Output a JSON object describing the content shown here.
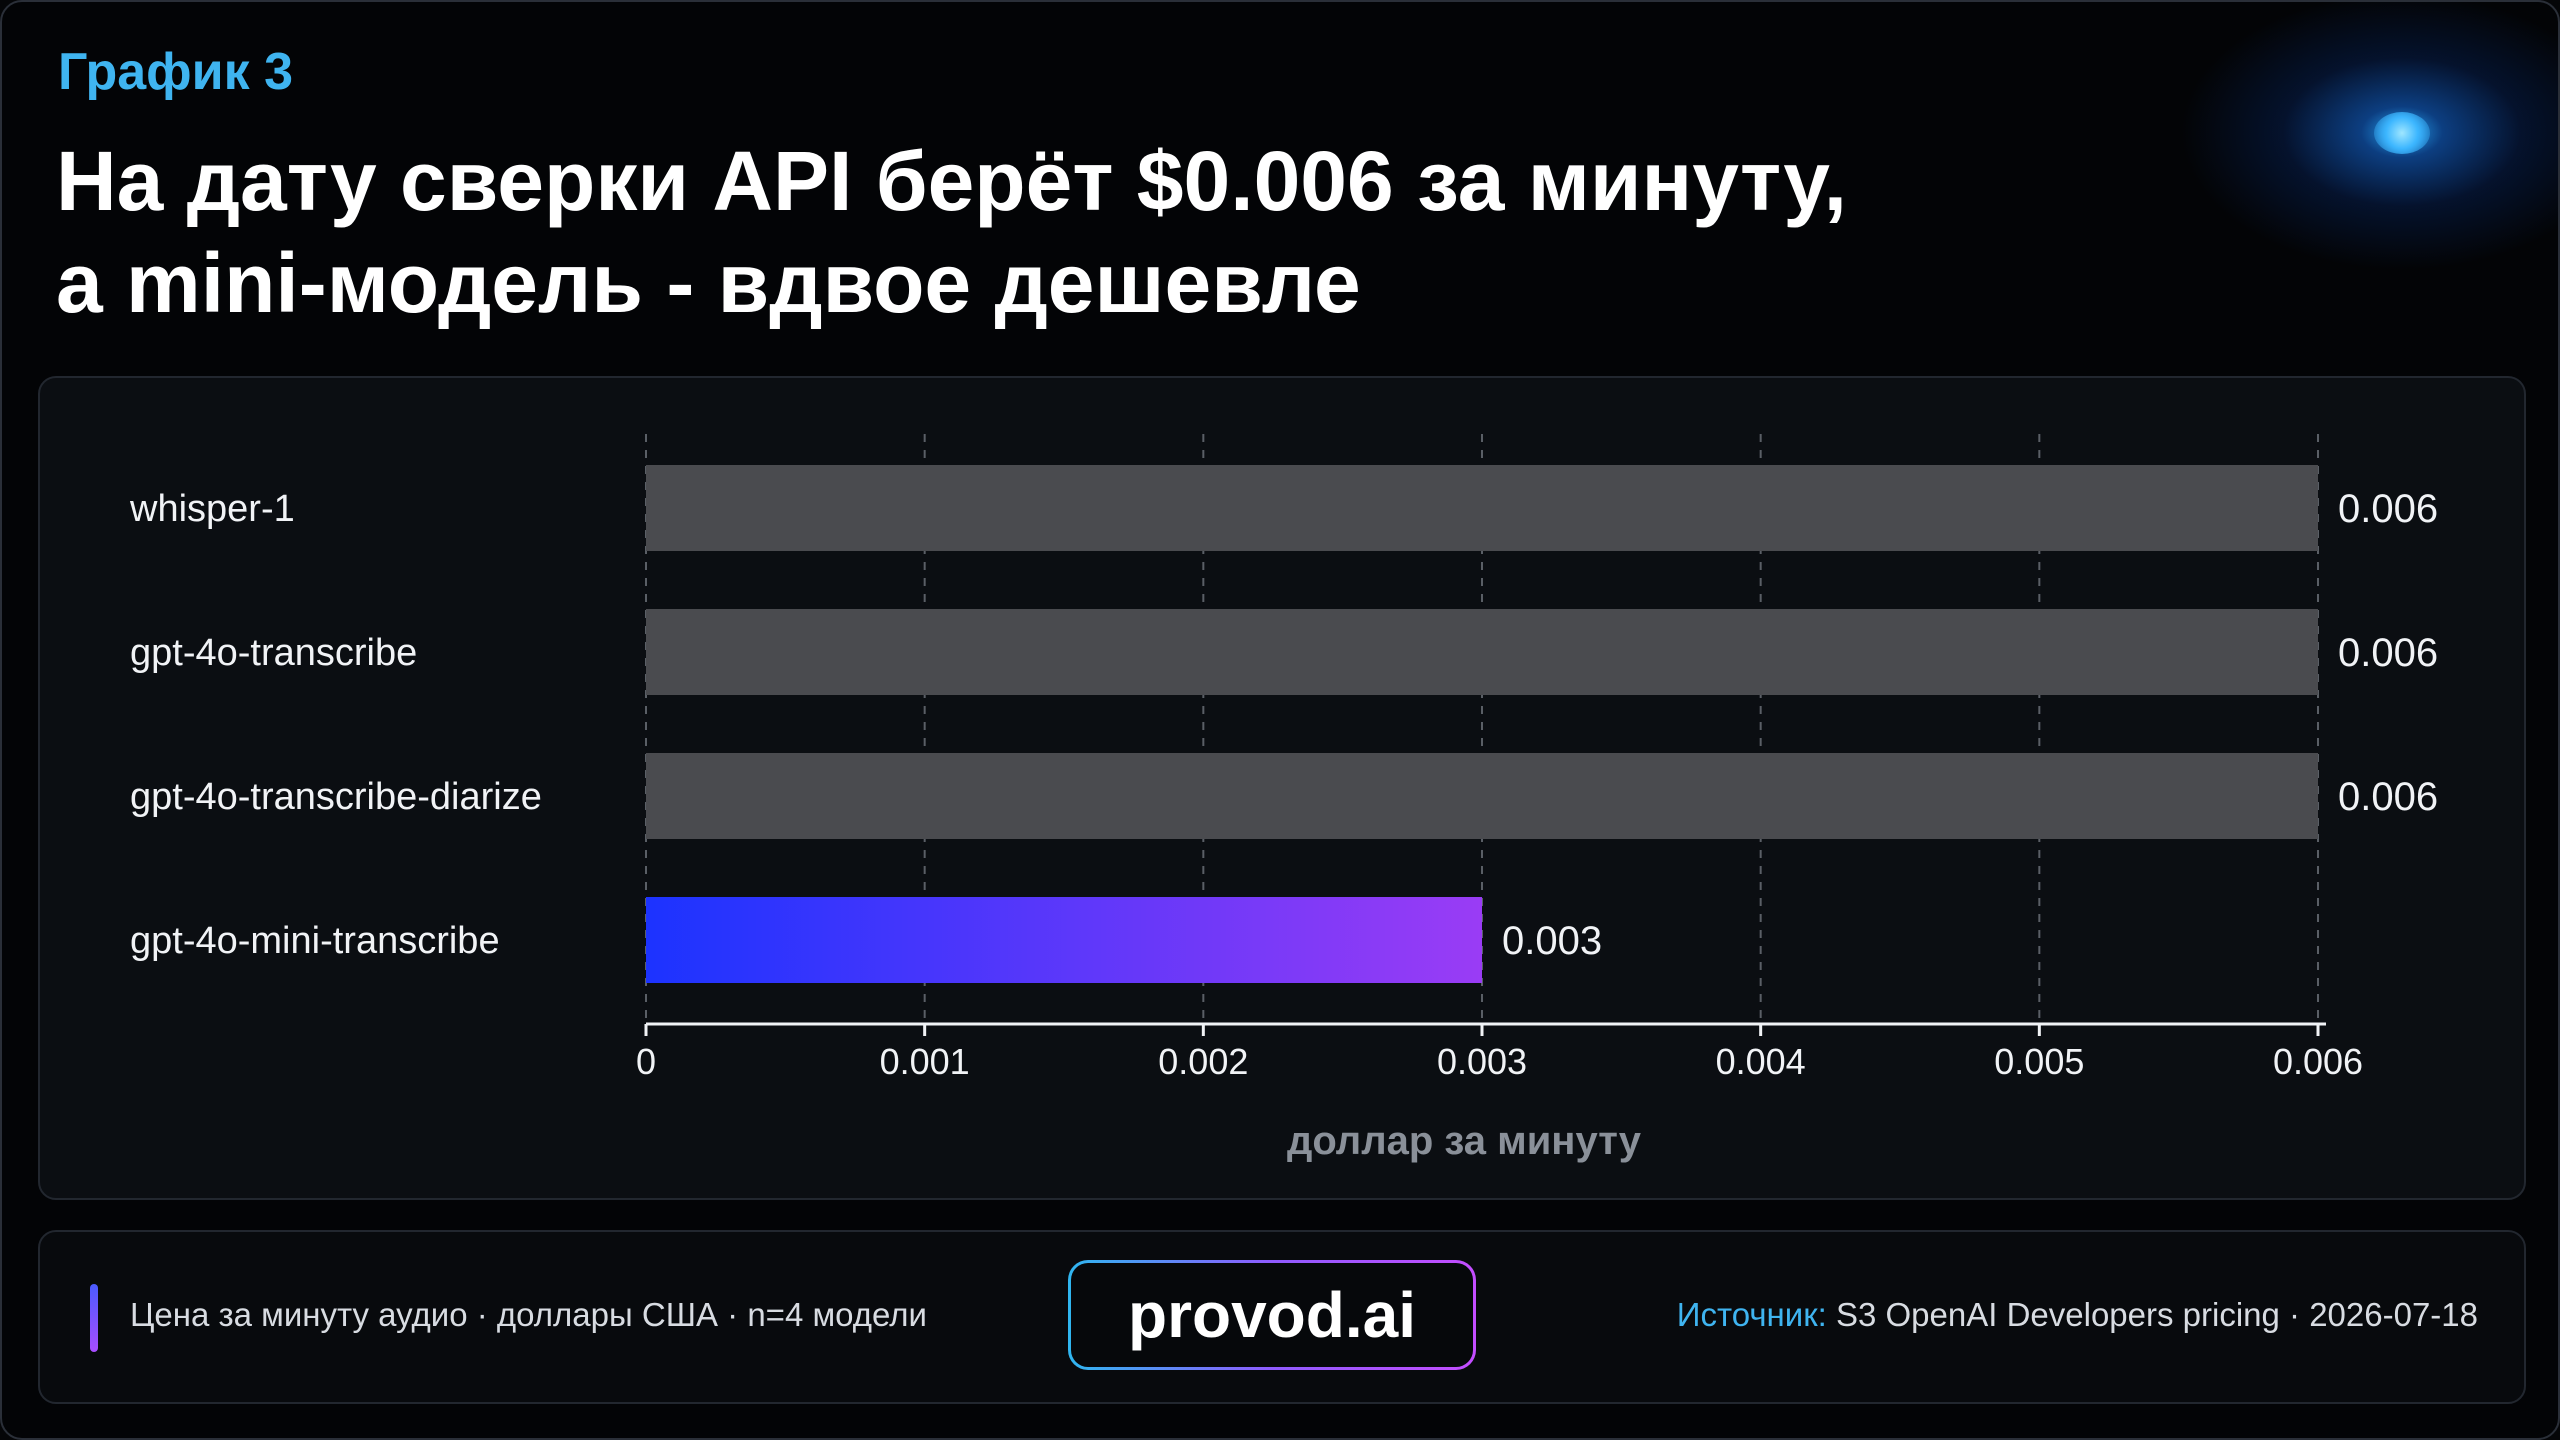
{
  "header": {
    "kicker": "График 3",
    "title_line1": "На дату сверки API берёт $0.006 за минуту,",
    "title_line2": "а mini-модель - вдвое дешевле"
  },
  "colors": {
    "accent_blue": "#3fb4f0",
    "bar_gray": "#4a4b4f",
    "highlight_gradient_start": "#1c33ff",
    "highlight_gradient_end": "#9a3cf5"
  },
  "chart_data": {
    "type": "bar",
    "orientation": "horizontal",
    "categories": [
      "whisper-1",
      "gpt-4o-transcribe",
      "gpt-4o-transcribe-diarize",
      "gpt-4o-mini-transcribe"
    ],
    "values": [
      0.006,
      0.006,
      0.006,
      0.003
    ],
    "value_labels": [
      "0.006",
      "0.006",
      "0.006",
      "0.003"
    ],
    "highlighted": [
      "gpt-4o-mini-transcribe"
    ],
    "xlim": [
      0,
      0.006
    ],
    "xticks": [
      0,
      0.001,
      0.002,
      0.003,
      0.004,
      0.005,
      0.006
    ],
    "xtick_labels": [
      "0",
      "0.001",
      "0.002",
      "0.003",
      "0.004",
      "0.005",
      "0.006"
    ],
    "xlabel": "доллар за минуту",
    "grid": "vertical-dashed"
  },
  "footer": {
    "caption": "Цена за минуту аудио · доллары США · n=4 модели",
    "brand": "provod.ai",
    "source_prefix": "Источник:",
    "source_text": " S3 OpenAI Developers pricing · 2026-07-18"
  }
}
